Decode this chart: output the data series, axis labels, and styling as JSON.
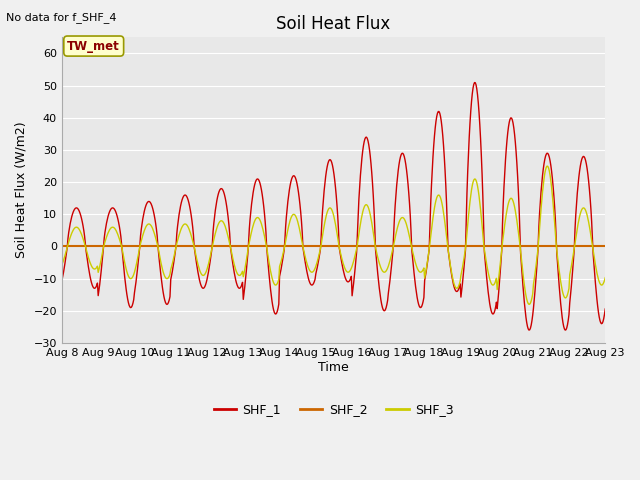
{
  "title": "Soil Heat Flux",
  "ylabel": "Soil Heat Flux (W/m2)",
  "xlabel": "Time",
  "annotation": "No data for f_SHF_4",
  "tw_met_label": "TW_met",
  "ylim": [
    -30,
    65
  ],
  "yticks": [
    -30,
    -20,
    -10,
    0,
    10,
    20,
    30,
    40,
    50,
    60
  ],
  "xtick_labels": [
    "Aug 8",
    "Aug 9",
    "Aug 10",
    "Aug 11",
    "Aug 12",
    "Aug 13",
    "Aug 14",
    "Aug 15",
    "Aug 16",
    "Aug 17",
    "Aug 18",
    "Aug 19",
    "Aug 20",
    "Aug 21",
    "Aug 22",
    "Aug 23"
  ],
  "color_shf1": "#cc0000",
  "color_shf2": "#cc6600",
  "color_shf3": "#cccc00",
  "legend_labels": [
    "SHF_1",
    "SHF_2",
    "SHF_3"
  ],
  "plot_bg": "#e8e8e8",
  "fig_bg": "#f0f0f0",
  "grid_color": "#ffffff",
  "tw_met_color": "#8b0000",
  "tw_met_bg": "#ffffcc",
  "tw_met_edge": "#999900"
}
